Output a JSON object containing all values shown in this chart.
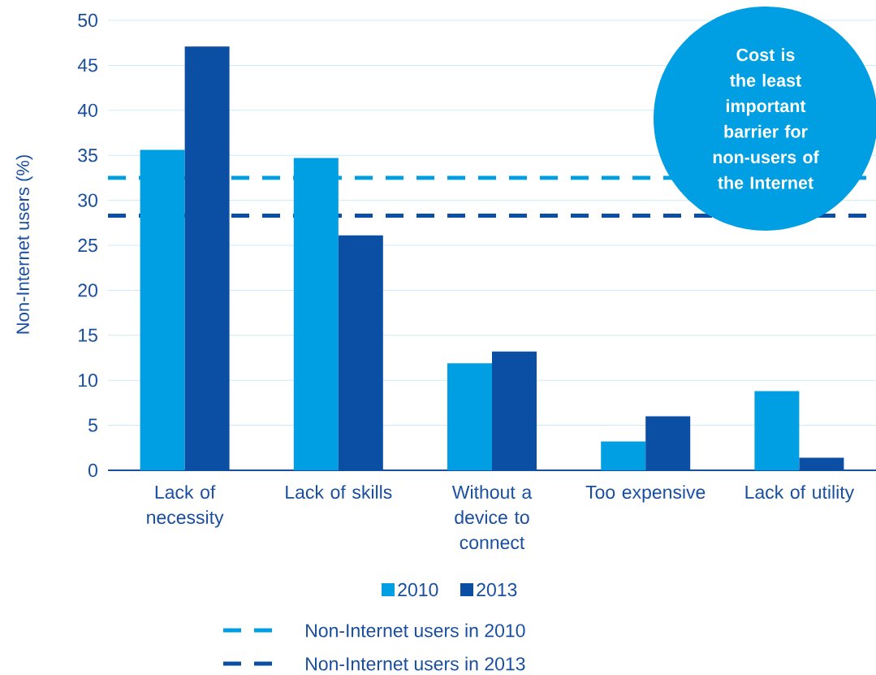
{
  "chart_data": {
    "type": "bar",
    "ylabel": "Non-Internet users (%)",
    "categories": [
      "Lack of necessity",
      "Lack of skills",
      "Without a device to connect",
      "Too expensive",
      "Lack of utility"
    ],
    "series": [
      {
        "name": "2010",
        "color": "#009fe3",
        "values": [
          35.6,
          34.7,
          11.9,
          3.2,
          8.8
        ]
      },
      {
        "name": "2013",
        "color": "#0a4fa3",
        "values": [
          47.1,
          26.1,
          13.2,
          6.0,
          1.4
        ]
      }
    ],
    "ref_lines": [
      {
        "axis": "y",
        "value": 32.5,
        "label": "Non-Internet users in 2010",
        "color": "#009fe3",
        "line_style": "dashed"
      },
      {
        "axis": "y",
        "value": 28.3,
        "label": "Non-Internet users in 2013",
        "color": "#0a4fa3",
        "line_style": "dashed"
      }
    ],
    "annotations": [
      "Cost is the least important barrier for non-users of the Internet"
    ],
    "ylim": [
      0,
      50
    ],
    "yticks": [
      0,
      5,
      10,
      15,
      20,
      25,
      30,
      35,
      40,
      45,
      50
    ],
    "grid": "y",
    "legend": "bottom"
  }
}
